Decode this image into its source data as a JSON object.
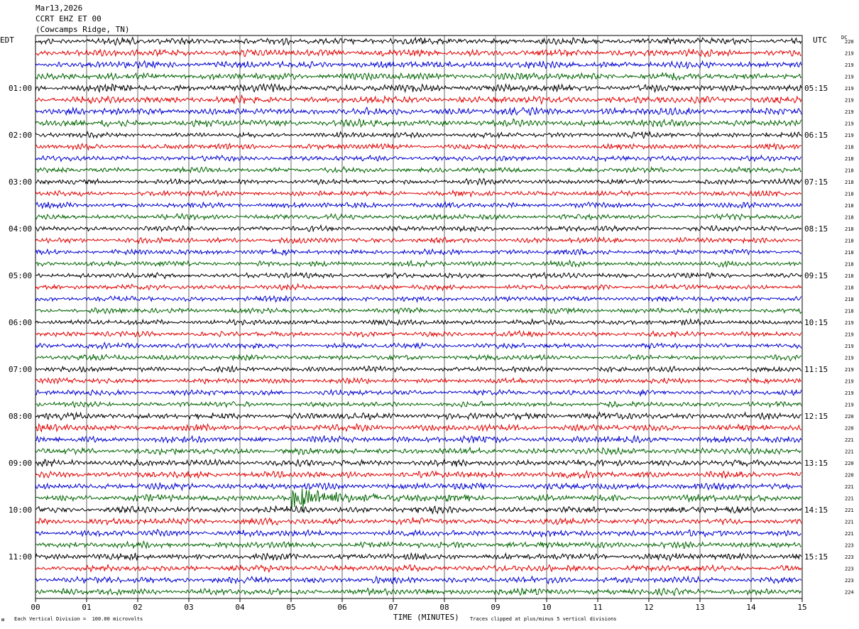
{
  "header": {
    "date": "Mar13,2026",
    "station": "CCRT EHZ ET 00",
    "location": "(Cowcamps Ridge, TN)"
  },
  "left_tz": "EDT",
  "right_tz": "UTC",
  "dc_label": "DC",
  "footer": {
    "division_note": "Each Vertical Division =  100.00 microvolts",
    "xlabel": "TIME (MINUTES)",
    "clip_note": "Traces clipped at plus/minus 5 vertical divisions",
    "corner_mark": "ᴍ"
  },
  "colors": {
    "trace_cycle": [
      "#000000",
      "#e00000",
      "#0000d0",
      "#006400"
    ],
    "grid": "#000000"
  },
  "chart_data": {
    "type": "line",
    "title": "",
    "xlabel": "TIME (MINUTES)",
    "xlim": [
      0,
      15
    ],
    "x_ticks": [
      "00",
      "01",
      "02",
      "03",
      "04",
      "05",
      "06",
      "07",
      "08",
      "09",
      "10",
      "11",
      "12",
      "13",
      "14",
      "15"
    ],
    "left_hour_labels": [
      "01:00",
      "02:00",
      "03:00",
      "04:00",
      "05:00",
      "06:00",
      "07:00",
      "08:00",
      "09:00",
      "10:00",
      "11:00"
    ],
    "right_hour_labels": [
      "05:15",
      "06:15",
      "07:15",
      "08:15",
      "09:15",
      "10:15",
      "11:15",
      "12:15",
      "13:15",
      "14:15",
      "15:15"
    ],
    "dc_offsets": [
      "220",
      "219",
      "219",
      "219",
      "219",
      "219",
      "219",
      "219",
      "219",
      "218",
      "218",
      "218",
      "218",
      "218",
      "218",
      "218",
      "218",
      "218",
      "218",
      "218",
      "218",
      "218",
      "218",
      "218",
      "219",
      "219",
      "219",
      "219",
      "219",
      "219",
      "219",
      "219",
      "220",
      "220",
      "221",
      "221",
      "220",
      "220",
      "221",
      "221",
      "221",
      "221",
      "221",
      "223",
      "223",
      "223",
      "223",
      "224"
    ],
    "lines_per_hour": 4,
    "trace_count": 48,
    "event": {
      "trace_index": 39,
      "start_minute": 5.0,
      "end_minute": 10.0,
      "peak_minute": 5.05
    }
  }
}
